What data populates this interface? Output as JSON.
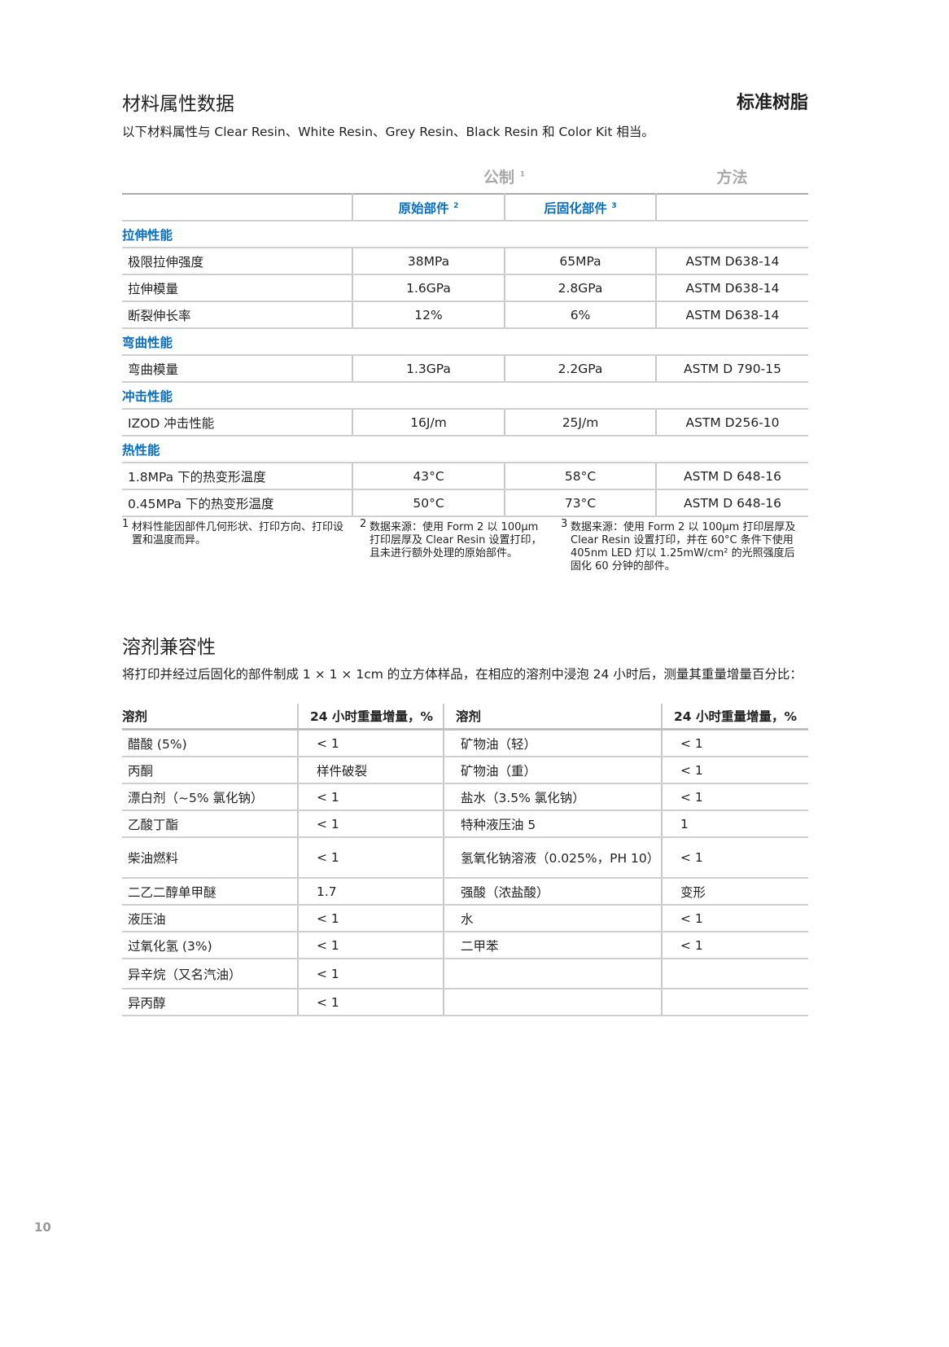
{
  "header": {
    "title": "材料属性数据",
    "product": "标准树脂",
    "subtitle": "以下材料属性与 Clear Resin、White Resin、Grey Resin、Black Resin 和 Color Kit 相当。"
  },
  "props_table": {
    "group_header": "公制",
    "group_sup": "1",
    "method_header": "方法",
    "col1": "原始部件",
    "col1_sup": "2",
    "col2": "后固化部件",
    "col2_sup": "3",
    "sections": [
      {
        "name": "拉伸性能",
        "rows": [
          [
            "极限拉伸强度",
            "38MPa",
            "65MPa",
            "ASTM D638-14"
          ],
          [
            "拉伸模量",
            "1.6GPa",
            "2.8GPa",
            "ASTM D638-14"
          ],
          [
            "断裂伸长率",
            "12%",
            "6%",
            "ASTM D638-14"
          ]
        ]
      },
      {
        "name": "弯曲性能",
        "rows": [
          [
            "弯曲模量",
            "1.3GPa",
            "2.2GPa",
            "ASTM D 790-15"
          ]
        ]
      },
      {
        "name": "冲击性能",
        "rows": [
          [
            "IZOD 冲击性能",
            "16J/m",
            "25J/m",
            "ASTM D256-10"
          ]
        ]
      },
      {
        "name": "热性能",
        "rows": [
          [
            "1.8MPa 下的热变形温度",
            "43°C",
            "58°C",
            "ASTM D 648-16"
          ],
          [
            "0.45MPa 下的热变形温度",
            "50°C",
            "73°C",
            "ASTM D 648-16"
          ]
        ]
      }
    ]
  },
  "footnotes": [
    {
      "n": "1",
      "text": "材料性能因部件几何形状、打印方向、打印设置和温度而异。"
    },
    {
      "n": "2",
      "text": "数据来源：使用 Form 2 以 100µm 打印层厚及 Clear Resin 设置打印，且未进行额外处理的原始部件。"
    },
    {
      "n": "3",
      "text": "数据来源：使用 Form 2 以 100µm 打印层厚及 Clear Resin 设置打印，并在 60°C 条件下使用 405nm LED 灯以 1.25mW/cm² 的光照强度后固化 60 分钟的部件。"
    }
  ],
  "solvent": {
    "title": "溶剂兼容性",
    "subtitle": "将打印并经过后固化的部件制成 1 × 1 × 1cm 的立方体样品，在相应的溶剂中浸泡 24 小时后，测量其重量增量百分比：",
    "headers": [
      "溶剂",
      "24 小时重量增量，%",
      "溶剂",
      "24 小时重量增量，%"
    ],
    "rows": [
      [
        "醋酸 (5%)",
        "< 1",
        "矿物油（轻）",
        "< 1"
      ],
      [
        "丙酮",
        "样件破裂",
        "矿物油（重）",
        "< 1"
      ],
      [
        "漂白剂（~5% 氯化钠）",
        "< 1",
        "盐水（3.5% 氯化钠）",
        "< 1"
      ],
      [
        "乙酸丁酯",
        "< 1",
        "特种液压油 5",
        "1"
      ],
      [
        "柴油燃料",
        "< 1",
        "氢氧化钠溶液（0.025%，PH 10）",
        "< 1"
      ],
      [
        "二乙二醇单甲醚",
        "1.7",
        "强酸（浓盐酸）",
        "变形"
      ],
      [
        "液压油",
        "< 1",
        "水",
        "< 1"
      ],
      [
        "过氧化氢 (3%)",
        "< 1",
        "二甲苯",
        "< 1"
      ],
      [
        "异辛烷（又名汽油）",
        "< 1",
        "",
        ""
      ],
      [
        "异丙醇",
        "< 1",
        "",
        ""
      ]
    ]
  },
  "page_number": "10",
  "colors": {
    "accent": "#0a6ebd",
    "header_gray": "#a8a8a8"
  }
}
